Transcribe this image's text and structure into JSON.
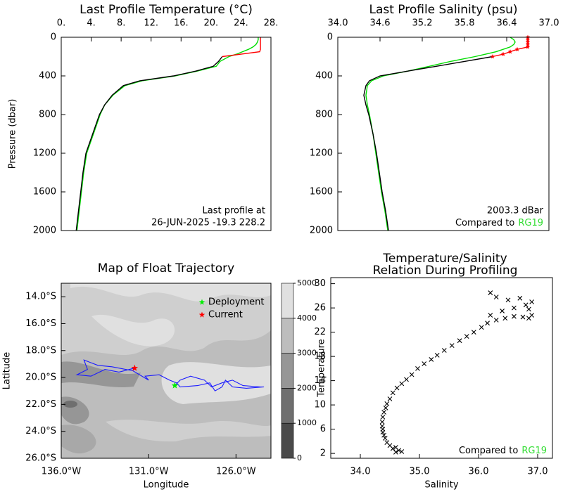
{
  "chart_data": [
    {
      "type": "line",
      "title": "Last Profile Temperature (°C)",
      "y_label": "Pressure (dbar)",
      "x_axis_top": true,
      "pressure": [
        0,
        25,
        50,
        75,
        100,
        125,
        150,
        175,
        200,
        250,
        300,
        350,
        400,
        450,
        500,
        600,
        700,
        800,
        1000,
        1200,
        1400,
        1600,
        1800,
        2000
      ],
      "series": [
        {
          "color": "#00dd00",
          "values": [
            26.3,
            26.3,
            26.2,
            26.0,
            25.6,
            25.0,
            24.2,
            23.4,
            22.4,
            21.2,
            20.7,
            18.2,
            15.2,
            10.8,
            8.5,
            6.9,
            5.8,
            5.2,
            4.3,
            3.4,
            3.0,
            2.7,
            2.4,
            2.1
          ]
        },
        {
          "color": "#000000",
          "values": [
            null,
            null,
            null,
            null,
            null,
            null,
            null,
            null,
            21.5,
            21.0,
            20.3,
            18.0,
            15.0,
            10.5,
            8.3,
            6.8,
            5.8,
            5.1,
            4.2,
            3.3,
            2.9,
            2.6,
            2.3,
            2.0
          ]
        },
        {
          "color": "#ff0000",
          "values": [
            26.6,
            26.6,
            26.6,
            26.6,
            26.6,
            26.6,
            26.5,
            24.0,
            21.5,
            null,
            null,
            null,
            null,
            null,
            null,
            null,
            null,
            null,
            null,
            null,
            null,
            null,
            null,
            null
          ]
        }
      ],
      "xlim": [
        0,
        28
      ],
      "xticks": [
        {
          "value": 0,
          "label": "0."
        },
        {
          "value": 4,
          "label": "4."
        },
        {
          "value": 8,
          "label": "8."
        },
        {
          "value": 12,
          "label": "12."
        },
        {
          "value": 16,
          "label": "16."
        },
        {
          "value": 20,
          "label": "20."
        },
        {
          "value": 24,
          "label": "24."
        },
        {
          "value": 28,
          "label": "28."
        }
      ],
      "ylim": [
        2000,
        0
      ],
      "yticks": [
        0,
        400,
        800,
        1200,
        1600,
        2000
      ],
      "annotations": [
        "Last profile at",
        "26-JUN-2025   -19.3 228.2"
      ]
    },
    {
      "type": "line",
      "title": "Last Profile Salinity (psu)",
      "x_axis_top": true,
      "pressure": [
        0,
        25,
        50,
        75,
        100,
        125,
        150,
        175,
        200,
        250,
        300,
        350,
        400,
        450,
        500,
        600,
        700,
        800,
        1000,
        1200,
        1400,
        1600,
        1800,
        2000
      ],
      "series": [
        {
          "color": "#00dd00",
          "values": [
            36.45,
            36.5,
            36.52,
            36.5,
            36.45,
            36.35,
            36.25,
            36.1,
            35.95,
            35.6,
            35.3,
            35.0,
            34.65,
            34.48,
            34.42,
            34.4,
            34.42,
            34.45,
            34.5,
            34.54,
            34.58,
            34.62,
            34.67,
            34.71
          ]
        },
        {
          "color": "#000000",
          "values": [
            null,
            null,
            null,
            null,
            null,
            null,
            null,
            null,
            36.2,
            35.8,
            35.4,
            35.0,
            34.6,
            34.45,
            34.4,
            34.37,
            34.4,
            34.44,
            34.5,
            34.55,
            34.59,
            34.63,
            34.68,
            34.72
          ]
        },
        {
          "color": "#ff0000",
          "markers": true,
          "values": [
            36.7,
            36.7,
            36.7,
            36.7,
            36.7,
            36.55,
            36.45,
            36.35,
            36.2,
            null,
            null,
            null,
            null,
            null,
            null,
            null,
            null,
            null,
            null,
            null,
            null,
            null,
            null,
            null
          ]
        }
      ],
      "xlim": [
        34.0,
        37.0
      ],
      "xticks": [
        {
          "value": 34.0,
          "label": "34.0"
        },
        34.6,
        35.2,
        35.8,
        36.4,
        {
          "value": 37.0,
          "label": "37.0"
        }
      ],
      "ylim": [
        2000,
        0
      ],
      "yticks": [
        0,
        400,
        800,
        1200,
        1600,
        2000
      ],
      "annotations": [
        "2003.3 dBar"
      ],
      "reference": {
        "prefix": "Compared to",
        "name": "RG19",
        "color": "#33dd33"
      }
    },
    {
      "type": "map",
      "title": "Map of Float Trajectory",
      "x_label": "Longitude",
      "y_label": "Latitude",
      "xlim": [
        -136,
        -124
      ],
      "xticks": [
        {
          "value": -136,
          "label": "136.0°W"
        },
        {
          "value": -131,
          "label": "131.0°W"
        },
        {
          "value": -126,
          "label": "126.0°W"
        }
      ],
      "ylim": [
        -26,
        -13
      ],
      "yticks": [
        {
          "value": -14,
          "label": "14.0°S"
        },
        {
          "value": -16,
          "label": "16.0°S"
        },
        {
          "value": -18,
          "label": "18.0°S"
        },
        {
          "value": -20,
          "label": "20.0°S"
        },
        {
          "value": -22,
          "label": "22.0°S"
        },
        {
          "value": -24,
          "label": "24.0°S"
        },
        {
          "value": -26,
          "label": "26.0°S"
        }
      ],
      "track": {
        "color": "#1a1aff",
        "lon": [
          -129.5,
          -129.2,
          -128.6,
          -127.8,
          -127.4,
          -126.8,
          -126.2,
          -125.6,
          -124.6,
          -124.4,
          -125.4,
          -126.2,
          -126.6,
          -126.8,
          -127.2,
          -127.5,
          -128.2,
          -129.2,
          -129.4,
          -129.8,
          -130.4,
          -131.2,
          -131.0,
          -131.9,
          -133.1,
          -133.9,
          -134.7,
          -134.5,
          -135.1,
          -134.3,
          -133.5,
          -132.7,
          -131.8
        ],
        "lat": [
          -20.6,
          -20.2,
          -19.9,
          -20.2,
          -20.7,
          -20.4,
          -20.2,
          -20.6,
          -20.7,
          -20.7,
          -20.8,
          -20.7,
          -20.2,
          -20.7,
          -21.0,
          -20.4,
          -20.6,
          -20.7,
          -20.4,
          -20.2,
          -19.8,
          -19.9,
          -20.2,
          -19.5,
          -19.2,
          -19.1,
          -18.7,
          -19.4,
          -19.8,
          -19.9,
          -19.4,
          -19.6,
          -19.3
        ]
      },
      "markers": [
        {
          "name": "Deployment",
          "color": "#00ee00",
          "lon": -129.5,
          "lat": -20.6
        },
        {
          "name": "Current",
          "color": "#ff0000",
          "lon": -131.8,
          "lat": -19.3
        }
      ],
      "colorbar": {
        "lim": [
          0,
          5000
        ],
        "ticks": [
          0,
          1000,
          2000,
          3000,
          4000,
          5000
        ],
        "colors": [
          "#4a4a4a",
          "#6f6f6f",
          "#969696",
          "#bdbdbd",
          "#e0e0e0"
        ]
      }
    },
    {
      "type": "scatter",
      "title_lines": [
        "Temperature/Salinity",
        "Relation During Profiling"
      ],
      "x_label": "Salinity",
      "y_label": "Temperature",
      "color": "#000000",
      "x": [
        34.6,
        34.65,
        34.7,
        34.55,
        34.6,
        34.5,
        34.45,
        34.42,
        34.4,
        34.38,
        34.38,
        34.37,
        34.37,
        34.38,
        34.4,
        34.43,
        34.45,
        34.5,
        34.55,
        34.62,
        34.7,
        34.78,
        34.87,
        34.97,
        35.08,
        35.2,
        35.3,
        35.42,
        35.55,
        35.68,
        35.8,
        35.92,
        36.05,
        36.15,
        36.3,
        36.45,
        36.6,
        36.75,
        36.85,
        36.2,
        36.4,
        36.6,
        36.8,
        36.9,
        36.5,
        36.3,
        36.2,
        36.7,
        36.85,
        36.9
      ],
      "y": [
        2.2,
        2.5,
        2.3,
        2.8,
        3.0,
        3.3,
        3.8,
        4.5,
        5.0,
        5.5,
        6.0,
        6.5,
        7.2,
        8.0,
        8.8,
        9.5,
        10.2,
        11.0,
        12.0,
        12.8,
        13.5,
        14.2,
        15.0,
        16.0,
        16.8,
        17.5,
        18.2,
        19.0,
        19.8,
        20.6,
        21.3,
        22.0,
        22.8,
        23.5,
        24.0,
        24.3,
        24.6,
        24.5,
        24.3,
        24.8,
        25.5,
        26.0,
        26.5,
        27.0,
        27.3,
        27.8,
        28.5,
        27.6,
        25.8,
        24.8
      ],
      "xlim": [
        33.5,
        37.25
      ],
      "xticks": [
        {
          "value": 34.0,
          "label": "34.0"
        },
        {
          "value": 35.0,
          "label": "35.0"
        },
        {
          "value": 36.0,
          "label": "36.0"
        },
        {
          "value": 37.0,
          "label": "37.0"
        }
      ],
      "ylim": [
        1.2,
        31
      ],
      "yticks": [
        2,
        6,
        10,
        14,
        18,
        22,
        26,
        30
      ],
      "reference": {
        "prefix": "Compared to",
        "name": "RG19",
        "color": "#33dd33"
      }
    }
  ]
}
